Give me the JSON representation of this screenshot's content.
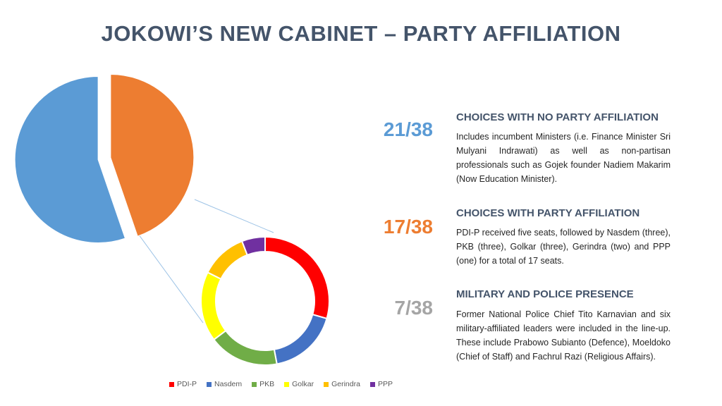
{
  "page": {
    "title": "JOKOWI’S NEW CABINET – PARTY AFFILIATION"
  },
  "chart_data": [
    {
      "type": "pie",
      "categories": [
        "No party affiliation",
        "Party affiliation"
      ],
      "values": [
        21,
        17
      ],
      "colors": [
        "#5b9bd5",
        "#ed7d31"
      ],
      "exploded": true,
      "title": ""
    },
    {
      "type": "pie",
      "style": "donut",
      "categories": [
        "PDI-P",
        "Nasdem",
        "PKB",
        "Golkar",
        "Gerindra",
        "PPP"
      ],
      "values": [
        5,
        3,
        3,
        3,
        2,
        1
      ],
      "colors": [
        "#ff0000",
        "#4472c4",
        "#70ad47",
        "#ffff00",
        "#ffc000",
        "#7030a0"
      ],
      "legend": "bottom",
      "title": ""
    }
  ],
  "sections": [
    {
      "stat": "21/38",
      "stat_color": "#5b9bd5",
      "heading": "CHOICES WITH NO PARTY AFFILIATION",
      "text": "Includes incumbent Ministers (i.e. Finance Minister Sri Mulyani Indrawati) as well as non-partisan professionals such as Gojek founder Nadiem Makarim (Now Education Minister)."
    },
    {
      "stat": "17/38",
      "stat_color": "#ed7d31",
      "heading": "CHOICES WITH PARTY AFFILIATION",
      "text": "PDI-P received five seats, followed by Nasdem (three), PKB (three), Golkar (three), Gerindra (two) and PPP (one) for a total of 17 seats."
    },
    {
      "stat": "7/38",
      "stat_color": "#a5a5a5",
      "heading": "MILITARY AND POLICE PRESENCE",
      "text": "Former National Police Chief Tito Karnavian and six military-affiliated leaders were included in the line-up. These include Prabowo Subianto (Defence), Moeldoko (Chief of Staff) and Fachrul Razi (Religious Affairs)."
    }
  ]
}
